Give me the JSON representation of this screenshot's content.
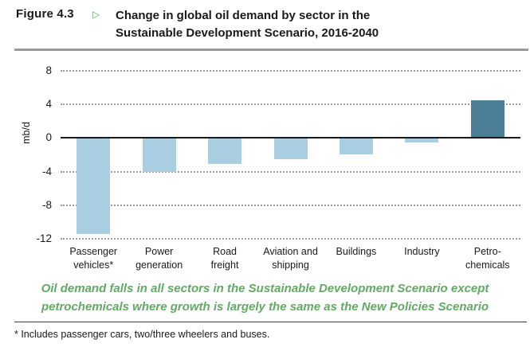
{
  "figure": {
    "label": "Figure 4.3",
    "arrow_glyph": "▷",
    "title_line1": "Change in global oil demand by sector in the",
    "title_line2": "Sustainable Development Scenario, 2016-2040"
  },
  "colors": {
    "accent_green": "#62aa64",
    "bar_light_blue": "#a9cde1",
    "bar_dark_blue": "#4d7e98",
    "zero_line": "#1a1a1a",
    "gridline_gray": "#9a9a9a",
    "header_rule_gray": "#9b9b9b"
  },
  "chart_data": {
    "type": "bar",
    "title": "Change in global oil demand by sector in the Sustainable Development Scenario, 2016-2040",
    "xlabel": "",
    "ylabel": "mb/d",
    "ylim": [
      -12,
      8
    ],
    "yticks": [
      8,
      4,
      0,
      -4,
      -8,
      -12
    ],
    "grid": "horizontal dotted, solid black zero line",
    "legend": "none",
    "categories": [
      "Passenger vehicles*",
      "Power generation",
      "Road freight",
      "Aviation and shipping",
      "Buildings",
      "Industry",
      "Petro-chemicals"
    ],
    "category_label_lines": [
      [
        "Passenger",
        "vehicles*"
      ],
      [
        "Power",
        "generation"
      ],
      [
        "Road",
        "freight"
      ],
      [
        "Aviation and",
        "shipping"
      ],
      [
        "Buildings"
      ],
      [
        "Industry"
      ],
      [
        "Petro-",
        "chemicals"
      ]
    ],
    "values": [
      -11.4,
      -4.0,
      -3.1,
      -2.5,
      -2.0,
      -0.5,
      4.5
    ],
    "bar_colors": [
      "#a9cde1",
      "#a9cde1",
      "#a9cde1",
      "#a9cde1",
      "#a9cde1",
      "#a9cde1",
      "#4d7e98"
    ]
  },
  "annotation": {
    "line1": "Oil demand falls in all sectors in the Sustainable Development Scenario except",
    "line2": "petrochemicals where growth is largely the same as the New Policies Scenario",
    "color": "#62aa64"
  },
  "footnote": "* Includes passenger cars, two/three wheelers and buses."
}
